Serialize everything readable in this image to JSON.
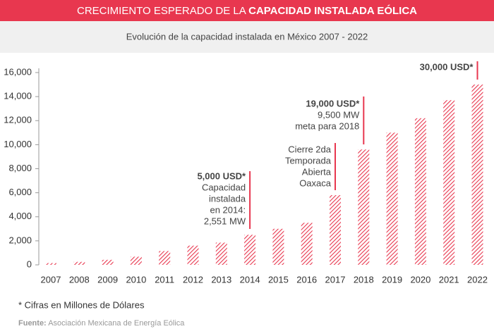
{
  "chart_data": {
    "type": "bar",
    "title": "CRECIMIENTO ESPERADO DE LA",
    "title_bold": "CAPACIDAD INSTALADA EÓLICA",
    "subtitle": "Evolución de la capacidad instalada en México 2007 - 2022",
    "categories": [
      "2007",
      "2008",
      "2009",
      "2010",
      "2011",
      "2012",
      "2013",
      "2014",
      "2015",
      "2016",
      "2017",
      "2018",
      "2019",
      "2020",
      "2021",
      "2022"
    ],
    "values": [
      150,
      250,
      420,
      680,
      1150,
      1600,
      1850,
      2500,
      3000,
      3500,
      5800,
      9600,
      11000,
      12200,
      13700,
      15000
    ],
    "color": "#e8374f",
    "ylim": [
      0,
      16000
    ],
    "yticks": [
      0,
      {
        "value": 2000,
        "label": "2,000"
      },
      {
        "value": 4000,
        "label": "4,000"
      },
      {
        "value": 6000,
        "label": "6,000"
      },
      {
        "value": 8000,
        "label": "8,000"
      },
      {
        "value": 10000,
        "label": "10,000"
      },
      {
        "value": 12000,
        "label": "12,000"
      },
      {
        "value": 14000,
        "label": "14,000"
      },
      {
        "value": 16000,
        "label": "16,000"
      }
    ],
    "grid": false,
    "annotations": [
      {
        "heading": "5,000 USD*",
        "lines": [
          "Capacidad",
          "instalada",
          "en 2014:",
          "2,551 MW"
        ]
      },
      {
        "lines": [
          "Cierre 2da",
          "Temporada",
          "Abierta",
          "Oaxaca"
        ]
      },
      {
        "heading": "19,000 USD*",
        "lines": [
          "9,500 MW",
          "meta para 2018"
        ]
      },
      {
        "heading": "30,000 USD*",
        "lines": []
      }
    ],
    "footnote": "* Cifras en Millones de Dólares",
    "source": {
      "label": "Fuente:",
      "text": "Asociación Mexicana de Energía Eólica"
    }
  }
}
